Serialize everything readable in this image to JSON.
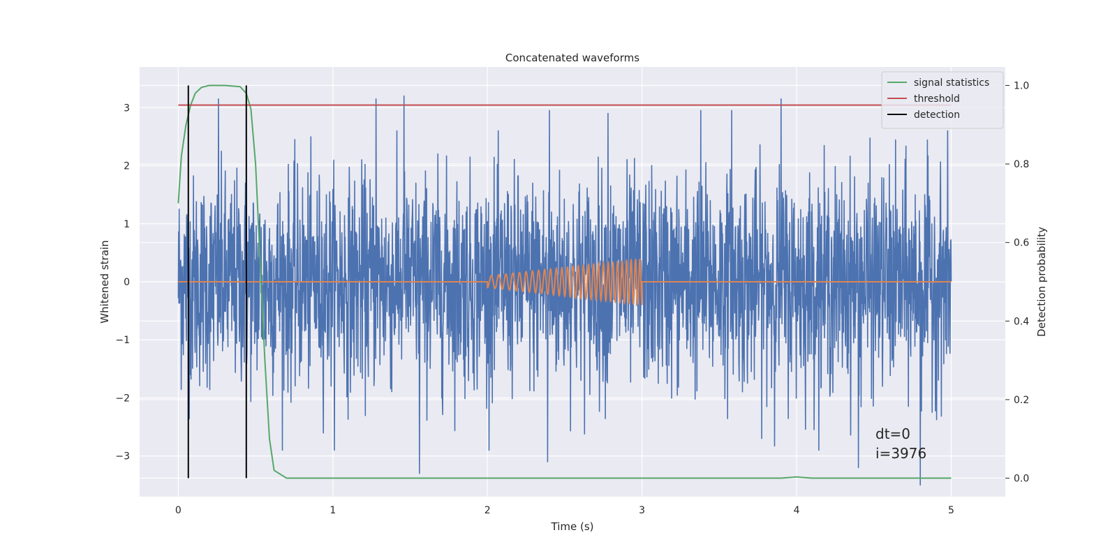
{
  "chart_data": {
    "type": "line",
    "title": "Concatenated waveforms",
    "xlabel": "Time (s)",
    "ylabel": "Whitened strain",
    "y2label": "Detection probability",
    "xlim": [
      -0.25,
      5.35
    ],
    "ylim": [
      -3.7,
      3.7
    ],
    "y2lim": [
      -0.047,
      1.047
    ],
    "xticks": [
      0,
      1,
      2,
      3,
      4,
      5
    ],
    "xtick_labels": [
      "0",
      "1",
      "2",
      "3",
      "4",
      "5"
    ],
    "yticks": [
      -3,
      -2,
      -1,
      0,
      1,
      2,
      3
    ],
    "ytick_labels": [
      "−3",
      "−2",
      "−1",
      "0",
      "1",
      "2",
      "3"
    ],
    "y2ticks": [
      0.0,
      0.2,
      0.4,
      0.6,
      0.8,
      1.0
    ],
    "y2tick_labels": [
      "0.0",
      "0.2",
      "0.4",
      "0.6",
      "0.8",
      "1.0"
    ],
    "grid": true,
    "legend_position": "top-right",
    "background": "#eaeaf2",
    "series": [
      {
        "name": "",
        "color": "#4c72b0",
        "axis": "left",
        "kind": "noise",
        "x_range": [
          0,
          5
        ],
        "spread": 0.9,
        "peaks": [
          [
            0.26,
            3.15
          ],
          [
            0.44,
            2.8
          ],
          [
            1.28,
            3.15
          ],
          [
            1.46,
            3.2
          ],
          [
            1.56,
            -3.3
          ],
          [
            2.39,
            -3.1
          ],
          [
            2.4,
            2.95
          ],
          [
            2.78,
            2.9
          ],
          [
            3.38,
            2.95
          ],
          [
            3.58,
            2.95
          ],
          [
            3.9,
            3.15
          ],
          [
            4.4,
            -3.2
          ],
          [
            4.8,
            -3.5
          ]
        ]
      },
      {
        "name": "",
        "color": "#dd8452",
        "axis": "left",
        "kind": "chirp",
        "x": [
          0,
          2,
          3,
          5
        ],
        "chirp_start": 2.0,
        "chirp_end": 3.0,
        "amplitude_start": 0.1,
        "amplitude_end": 0.4
      },
      {
        "name": "signal statistics",
        "color": "#55a868",
        "axis": "right",
        "x": [
          0.0,
          0.02,
          0.05,
          0.08,
          0.11,
          0.15,
          0.2,
          0.3,
          0.4,
          0.44,
          0.47,
          0.5,
          0.53,
          0.56,
          0.59,
          0.62,
          0.7,
          1.0,
          2.0,
          3.0,
          3.9,
          4.0,
          4.1,
          5.0
        ],
        "y": [
          0.7,
          0.82,
          0.9,
          0.95,
          0.98,
          0.995,
          1.0,
          1.0,
          0.997,
          0.98,
          0.94,
          0.8,
          0.55,
          0.3,
          0.1,
          0.02,
          0.0,
          0.0,
          0.0,
          0.0,
          0.0,
          0.003,
          0.0,
          0.0
        ]
      },
      {
        "name": "threshold",
        "color": "#c44e52",
        "axis": "right",
        "x": [
          0,
          5
        ],
        "y": [
          0.95,
          0.95
        ]
      },
      {
        "name": "detection",
        "color": "#000000",
        "axis": "right",
        "kind": "vlines",
        "x": [
          0.065,
          0.44
        ],
        "y_range": [
          0.0,
          1.0
        ]
      }
    ],
    "annotations": [
      "dt=0",
      "i=3976"
    ]
  }
}
